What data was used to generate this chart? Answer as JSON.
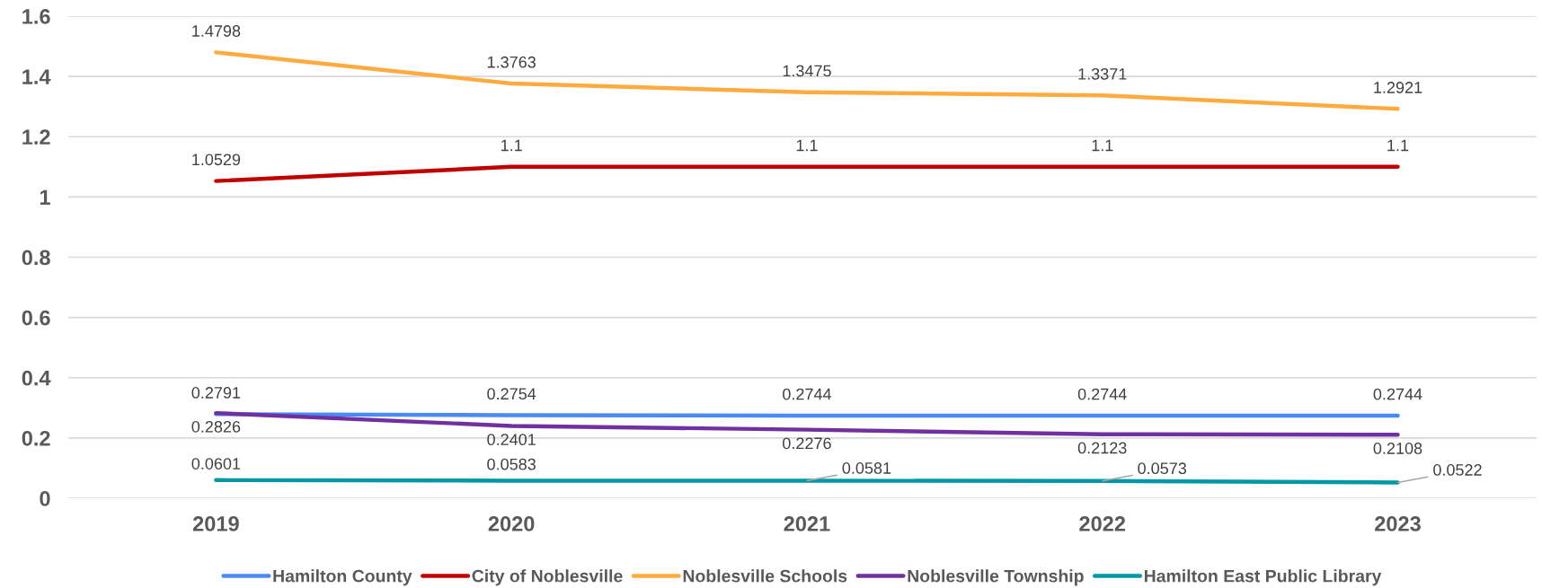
{
  "chart_data": {
    "type": "line",
    "categories": [
      "2019",
      "2020",
      "2021",
      "2022",
      "2023"
    ],
    "series": [
      {
        "name": "Hamilton County",
        "color": "#4a8af4",
        "values": [
          0.2791,
          0.2754,
          0.2744,
          0.2744,
          0.2744
        ]
      },
      {
        "name": "City of Noblesville",
        "color": "#c00000",
        "values": [
          1.0529,
          1.1,
          1.1,
          1.1,
          1.1
        ]
      },
      {
        "name": "Noblesville Schools",
        "color": "#ffab40",
        "values": [
          1.4798,
          1.3763,
          1.3475,
          1.3371,
          1.2921
        ]
      },
      {
        "name": "Noblesville Township",
        "color": "#7030a0",
        "values": [
          0.2826,
          0.2401,
          0.2276,
          0.2123,
          0.2108
        ]
      },
      {
        "name": "Hamilton East Public Library",
        "color": "#0097a7",
        "values": [
          0.0601,
          0.0583,
          0.0581,
          0.0573,
          0.0522
        ]
      }
    ],
    "ylim": [
      0,
      1.6
    ],
    "yticks": [
      0,
      0.2,
      0.4,
      0.6,
      0.8,
      1,
      1.2,
      1.4,
      1.6
    ],
    "grid": "y",
    "legend": "bottom",
    "data_labels": true,
    "marker": "none",
    "line_style": "solid"
  }
}
